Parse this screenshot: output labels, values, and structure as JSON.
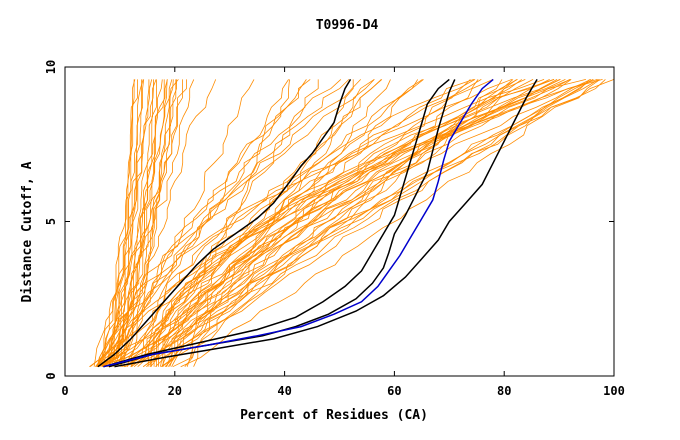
{
  "chart_data": {
    "type": "line",
    "title": "T0996-D4",
    "xlabel": "Percent of Residues (CA)",
    "ylabel": "Distance Cutoff, A",
    "xlim": [
      0,
      100
    ],
    "ylim": [
      0,
      10
    ],
    "x_ticks": [
      "0",
      "20",
      "40",
      "60",
      "80",
      "100"
    ],
    "y_ticks": [
      "0",
      "5",
      "10"
    ],
    "grid": false,
    "legend": "none",
    "colors": {
      "background_models": "#ff8c00",
      "highlight_black": "#000000",
      "highlight_blue": "#0000cd"
    },
    "highlight_series": [
      {
        "color": "#000000",
        "points": [
          [
            6,
            0.3
          ],
          [
            9,
            0.7
          ],
          [
            12,
            1.2
          ],
          [
            15,
            1.8
          ],
          [
            18,
            2.4
          ],
          [
            21,
            3.0
          ],
          [
            24,
            3.6
          ],
          [
            27,
            4.1
          ],
          [
            31,
            4.6
          ],
          [
            35,
            5.1
          ],
          [
            38,
            5.6
          ],
          [
            41,
            6.3
          ],
          [
            43,
            6.8
          ],
          [
            45,
            7.2
          ],
          [
            47,
            7.7
          ],
          [
            49,
            8.2
          ],
          [
            50,
            8.8
          ],
          [
            51,
            9.3
          ],
          [
            52,
            9.6
          ]
        ]
      },
      {
        "color": "#000000",
        "points": [
          [
            7,
            0.3
          ],
          [
            15,
            0.7
          ],
          [
            25,
            1.1
          ],
          [
            35,
            1.5
          ],
          [
            42,
            1.9
          ],
          [
            47,
            2.4
          ],
          [
            51,
            2.9
          ],
          [
            54,
            3.4
          ],
          [
            56,
            4.0
          ],
          [
            58,
            4.6
          ],
          [
            60,
            5.2
          ],
          [
            61,
            5.8
          ],
          [
            62,
            6.4
          ],
          [
            63,
            7.0
          ],
          [
            64,
            7.6
          ],
          [
            65,
            8.2
          ],
          [
            66,
            8.8
          ],
          [
            68,
            9.3
          ],
          [
            70,
            9.6
          ]
        ]
      },
      {
        "color": "#000000",
        "points": [
          [
            8,
            0.3
          ],
          [
            16,
            0.7
          ],
          [
            26,
            1.0
          ],
          [
            36,
            1.3
          ],
          [
            42,
            1.6
          ],
          [
            48,
            2.0
          ],
          [
            53,
            2.5
          ],
          [
            56,
            3.0
          ],
          [
            58,
            3.5
          ],
          [
            59,
            4.0
          ],
          [
            60,
            4.6
          ],
          [
            62,
            5.2
          ],
          [
            64,
            5.9
          ],
          [
            66,
            6.6
          ],
          [
            67,
            7.3
          ],
          [
            68,
            8.0
          ],
          [
            69,
            8.6
          ],
          [
            70,
            9.2
          ],
          [
            71,
            9.6
          ]
        ]
      },
      {
        "color": "#000000",
        "points": [
          [
            9,
            0.3
          ],
          [
            18,
            0.6
          ],
          [
            28,
            0.9
          ],
          [
            38,
            1.2
          ],
          [
            46,
            1.6
          ],
          [
            53,
            2.1
          ],
          [
            58,
            2.6
          ],
          [
            62,
            3.2
          ],
          [
            65,
            3.8
          ],
          [
            68,
            4.4
          ],
          [
            70,
            5.0
          ],
          [
            73,
            5.6
          ],
          [
            76,
            6.2
          ],
          [
            78,
            6.9
          ],
          [
            80,
            7.6
          ],
          [
            82,
            8.3
          ],
          [
            84,
            9.0
          ],
          [
            86,
            9.6
          ]
        ]
      },
      {
        "color": "#0000cd",
        "points": [
          [
            7,
            0.3
          ],
          [
            16,
            0.7
          ],
          [
            26,
            1.0
          ],
          [
            35,
            1.3
          ],
          [
            43,
            1.6
          ],
          [
            49,
            2.0
          ],
          [
            54,
            2.4
          ],
          [
            57,
            2.9
          ],
          [
            59,
            3.4
          ],
          [
            61,
            3.9
          ],
          [
            63,
            4.5
          ],
          [
            65,
            5.1
          ],
          [
            67,
            5.7
          ],
          [
            68,
            6.3
          ],
          [
            69,
            7.0
          ],
          [
            70,
            7.6
          ],
          [
            72,
            8.2
          ],
          [
            74,
            8.8
          ],
          [
            76,
            9.3
          ],
          [
            78,
            9.6
          ]
        ]
      }
    ]
  }
}
